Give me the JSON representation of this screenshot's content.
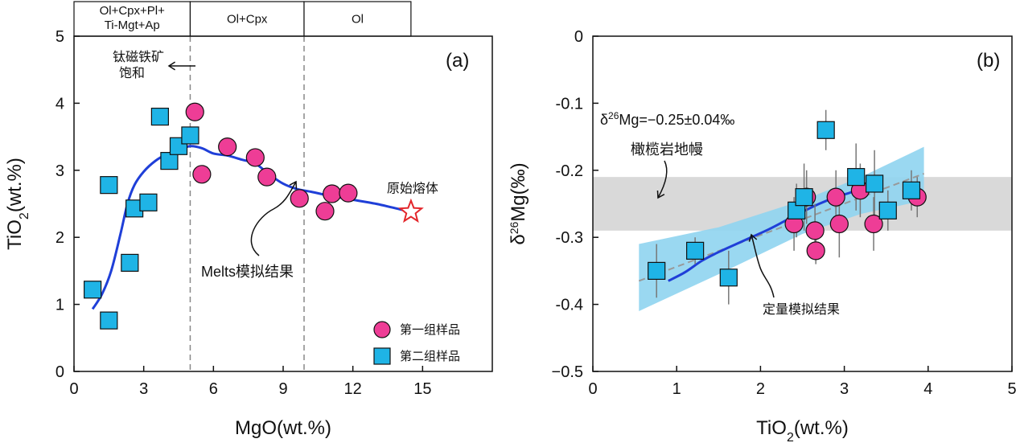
{
  "chart_data": [
    {
      "panel": "(a)",
      "type": "scatter",
      "xlabel": "MgO(wt.%)",
      "ylabel": "TiO2(wt.%)",
      "ylabel_main": "TiO",
      "ylabel_sub": "2",
      "ylabel_tail": "(wt.%)",
      "xlim": [
        0,
        18
      ],
      "ylim": [
        0,
        5
      ],
      "xticks": [
        0,
        3,
        6,
        9,
        12,
        15
      ],
      "yticks": [
        0,
        1,
        2,
        3,
        4,
        5
      ],
      "phase_boxes": [
        {
          "label_lines": [
            "Ol+Cpx+Pl+",
            "Ti-Mgt+Ap"
          ],
          "x_range": [
            0,
            5
          ]
        },
        {
          "label_lines": [
            "Ol+Cpx"
          ],
          "x_range": [
            5,
            9.9
          ]
        },
        {
          "label_lines": [
            "Ol"
          ],
          "x_range": [
            9.9,
            14.5
          ]
        }
      ],
      "vlines": [
        5,
        9.9
      ],
      "series": [
        {
          "name": "第一组样品",
          "marker": "circle",
          "color": "#ee3d96",
          "x": [
            5.2,
            5.5,
            6.6,
            7.8,
            8.3,
            9.7,
            10.8,
            11.1,
            11.8
          ],
          "y": [
            3.87,
            2.94,
            3.35,
            3.19,
            2.9,
            2.58,
            2.39,
            2.65,
            2.66
          ]
        },
        {
          "name": "第二组样品",
          "marker": "square",
          "color": "#1fb4e6",
          "x": [
            0.8,
            1.5,
            1.5,
            2.4,
            2.6,
            3.2,
            3.7,
            4.1,
            4.5,
            5.0
          ],
          "y": [
            1.22,
            0.76,
            2.78,
            1.62,
            2.43,
            2.52,
            3.8,
            3.14,
            3.36,
            3.52
          ]
        }
      ],
      "model_curve": {
        "name": "Melts模拟结果",
        "color": "#1f3fd8",
        "x": [
          0.8,
          1.2,
          1.6,
          2.0,
          2.3,
          2.6,
          3.0,
          3.5,
          4.0,
          4.5,
          5.0,
          5.5,
          6.0,
          6.6,
          7.2,
          7.8,
          8.4,
          9.0,
          9.6,
          10.2,
          11.0,
          12.0,
          13.0,
          14.0,
          14.5
        ],
        "y": [
          0.93,
          1.15,
          1.5,
          2.05,
          2.5,
          2.78,
          2.98,
          3.14,
          3.24,
          3.3,
          3.36,
          3.33,
          3.25,
          3.22,
          3.16,
          3.1,
          2.94,
          2.8,
          2.72,
          2.68,
          2.62,
          2.56,
          2.5,
          2.42,
          2.38
        ]
      },
      "primary_melt": {
        "label": "原始熔体",
        "x": 14.5,
        "y": 2.38,
        "color": "#e3262b"
      },
      "annotations": {
        "saturation_line1": "钛磁铁矿",
        "saturation_line2": "饱和",
        "melts_label": "Melts模拟结果"
      },
      "legend": [
        "第一组样品",
        "第二组样品"
      ]
    },
    {
      "panel": "(b)",
      "type": "scatter",
      "xlabel": "TiO2(wt.%)",
      "xlabel_main": "TiO",
      "xlabel_sub": "2",
      "xlabel_tail": "(wt.%)",
      "ylabel": "δ26Mg(‰)",
      "ylabel_main": "δ",
      "ylabel_sup": "26",
      "ylabel_tail": "Mg(‰)",
      "xlim": [
        0,
        5
      ],
      "ylim": [
        -0.5,
        0
      ],
      "xticks": [
        0,
        1,
        2,
        3,
        4,
        5
      ],
      "yticks": [
        0,
        -0.1,
        -0.2,
        -0.3,
        -0.4,
        -0.5
      ],
      "ytick_labels": [
        "0",
        "-0.1",
        "-0.2",
        "-0.3",
        "-0.4",
        "−0.5"
      ],
      "mantle_band": {
        "y_range": [
          -0.29,
          -0.21
        ],
        "color": "#d9d9d9",
        "label": "橄榄岩地幔"
      },
      "mantle_value": {
        "prefix": "δ",
        "sup": "26",
        "text": "Mg=−0.25±0.04‰"
      },
      "series": [
        {
          "name": "第一组样品",
          "marker": "circle",
          "color": "#ee3d96",
          "x": [
            2.4,
            2.55,
            2.65,
            2.66,
            2.9,
            2.94,
            3.19,
            3.35,
            3.87
          ],
          "y": [
            -0.28,
            -0.24,
            -0.29,
            -0.32,
            -0.24,
            -0.28,
            -0.23,
            -0.28,
            -0.24
          ],
          "err": [
            0.04,
            0.04,
            0.04,
            0.02,
            0.04,
            0.05,
            0.04,
            0.04,
            0.03
          ]
        },
        {
          "name": "第二组样品",
          "marker": "square",
          "color": "#1fb4e6",
          "x": [
            0.76,
            1.22,
            1.62,
            2.43,
            2.52,
            2.78,
            3.14,
            3.36,
            3.52,
            3.8
          ],
          "y": [
            -0.35,
            -0.32,
            -0.36,
            -0.26,
            -0.24,
            -0.14,
            -0.21,
            -0.22,
            -0.26,
            -0.23
          ],
          "err": [
            0.04,
            0.02,
            0.04,
            0.04,
            0.05,
            0.03,
            0.05,
            0.05,
            0.03,
            0.03
          ]
        }
      ],
      "confidence_band": {
        "color": "#8fd4f0",
        "upper": [
          [
            0.55,
            -0.31
          ],
          [
            1.5,
            -0.285
          ],
          [
            2.5,
            -0.245
          ],
          [
            3.2,
            -0.21
          ],
          [
            3.95,
            -0.165
          ]
        ],
        "lower": [
          [
            3.95,
            -0.245
          ],
          [
            3.2,
            -0.265
          ],
          [
            2.5,
            -0.295
          ],
          [
            1.5,
            -0.355
          ],
          [
            0.55,
            -0.41
          ]
        ]
      },
      "regression_line": {
        "color": "#999999",
        "x": [
          0.55,
          3.95
        ],
        "y": [
          -0.365,
          -0.205
        ]
      },
      "model_curve": {
        "name": "定量模拟结果",
        "color": "#1f3fd8",
        "x": [
          0.9,
          1.1,
          1.3,
          1.5,
          1.8,
          2.1,
          2.3,
          2.5,
          2.7,
          2.9,
          3.1,
          3.2
        ],
        "y": [
          -0.365,
          -0.352,
          -0.335,
          -0.322,
          -0.305,
          -0.288,
          -0.275,
          -0.262,
          -0.25,
          -0.24,
          -0.232,
          -0.225
        ]
      },
      "annotations": {
        "mantle_label": "橄榄岩地幔",
        "model_label": "定量模拟结果"
      }
    }
  ]
}
